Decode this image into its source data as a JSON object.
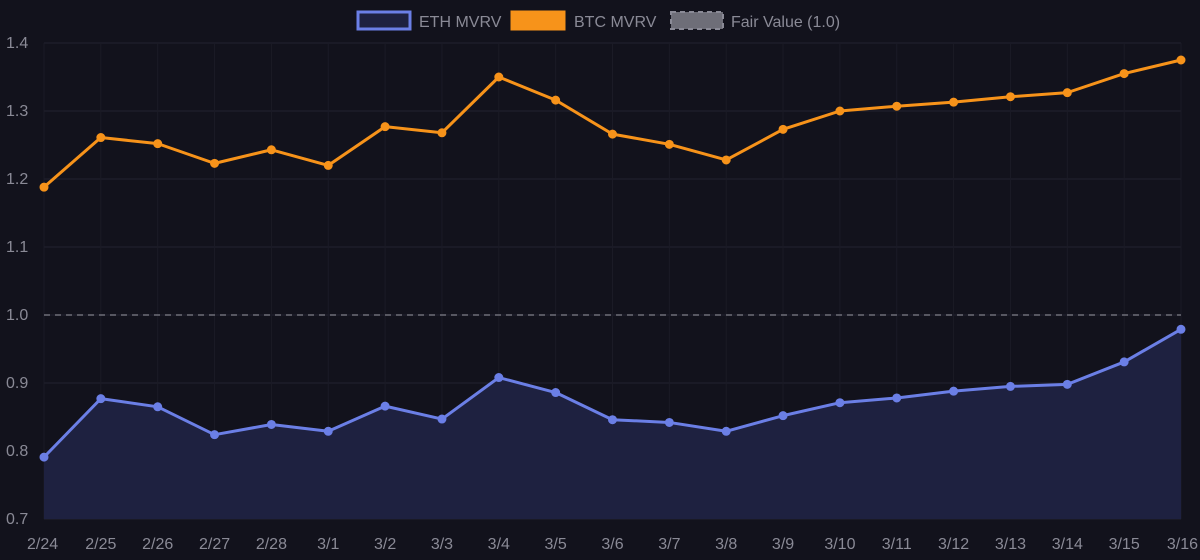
{
  "chart_data": {
    "type": "line",
    "title": "",
    "xlabel": "",
    "ylabel": "",
    "ylim": [
      0.7,
      1.4
    ],
    "yticks": [
      "0.7",
      "0.8",
      "0.9",
      "1.0",
      "1.1",
      "1.2",
      "1.3",
      "1.4"
    ],
    "ytick_values": [
      0.7,
      0.8,
      0.9,
      1.0,
      1.1,
      1.2,
      1.3,
      1.4
    ],
    "categories": [
      "2/24",
      "2/25",
      "2/26",
      "2/27",
      "2/28",
      "3/1",
      "3/2",
      "3/3",
      "3/4",
      "3/5",
      "3/6",
      "3/7",
      "3/8",
      "3/9",
      "3/10",
      "3/11",
      "3/12",
      "3/13",
      "3/14",
      "3/15",
      "3/16"
    ],
    "series": [
      {
        "name": "ETH MVRV",
        "color": "#6b7fe6",
        "fill": "#1e2140",
        "values": [
          0.791,
          0.877,
          0.865,
          0.824,
          0.839,
          0.829,
          0.866,
          0.847,
          0.908,
          0.886,
          0.846,
          0.842,
          0.829,
          0.852,
          0.871,
          0.878,
          0.888,
          0.895,
          0.898,
          0.931,
          0.979
        ]
      },
      {
        "name": "BTC MVRV",
        "color": "#f7931a",
        "values": [
          1.188,
          1.261,
          1.252,
          1.223,
          1.243,
          1.22,
          1.277,
          1.268,
          1.35,
          1.316,
          1.266,
          1.251,
          1.228,
          1.273,
          1.3,
          1.307,
          1.313,
          1.321,
          1.327,
          1.355,
          1.375
        ]
      }
    ],
    "reference_line": {
      "name": "Fair Value (1.0)",
      "value": 1.0,
      "color": "#6e6e78"
    },
    "legend": "top-center",
    "grid": true
  }
}
